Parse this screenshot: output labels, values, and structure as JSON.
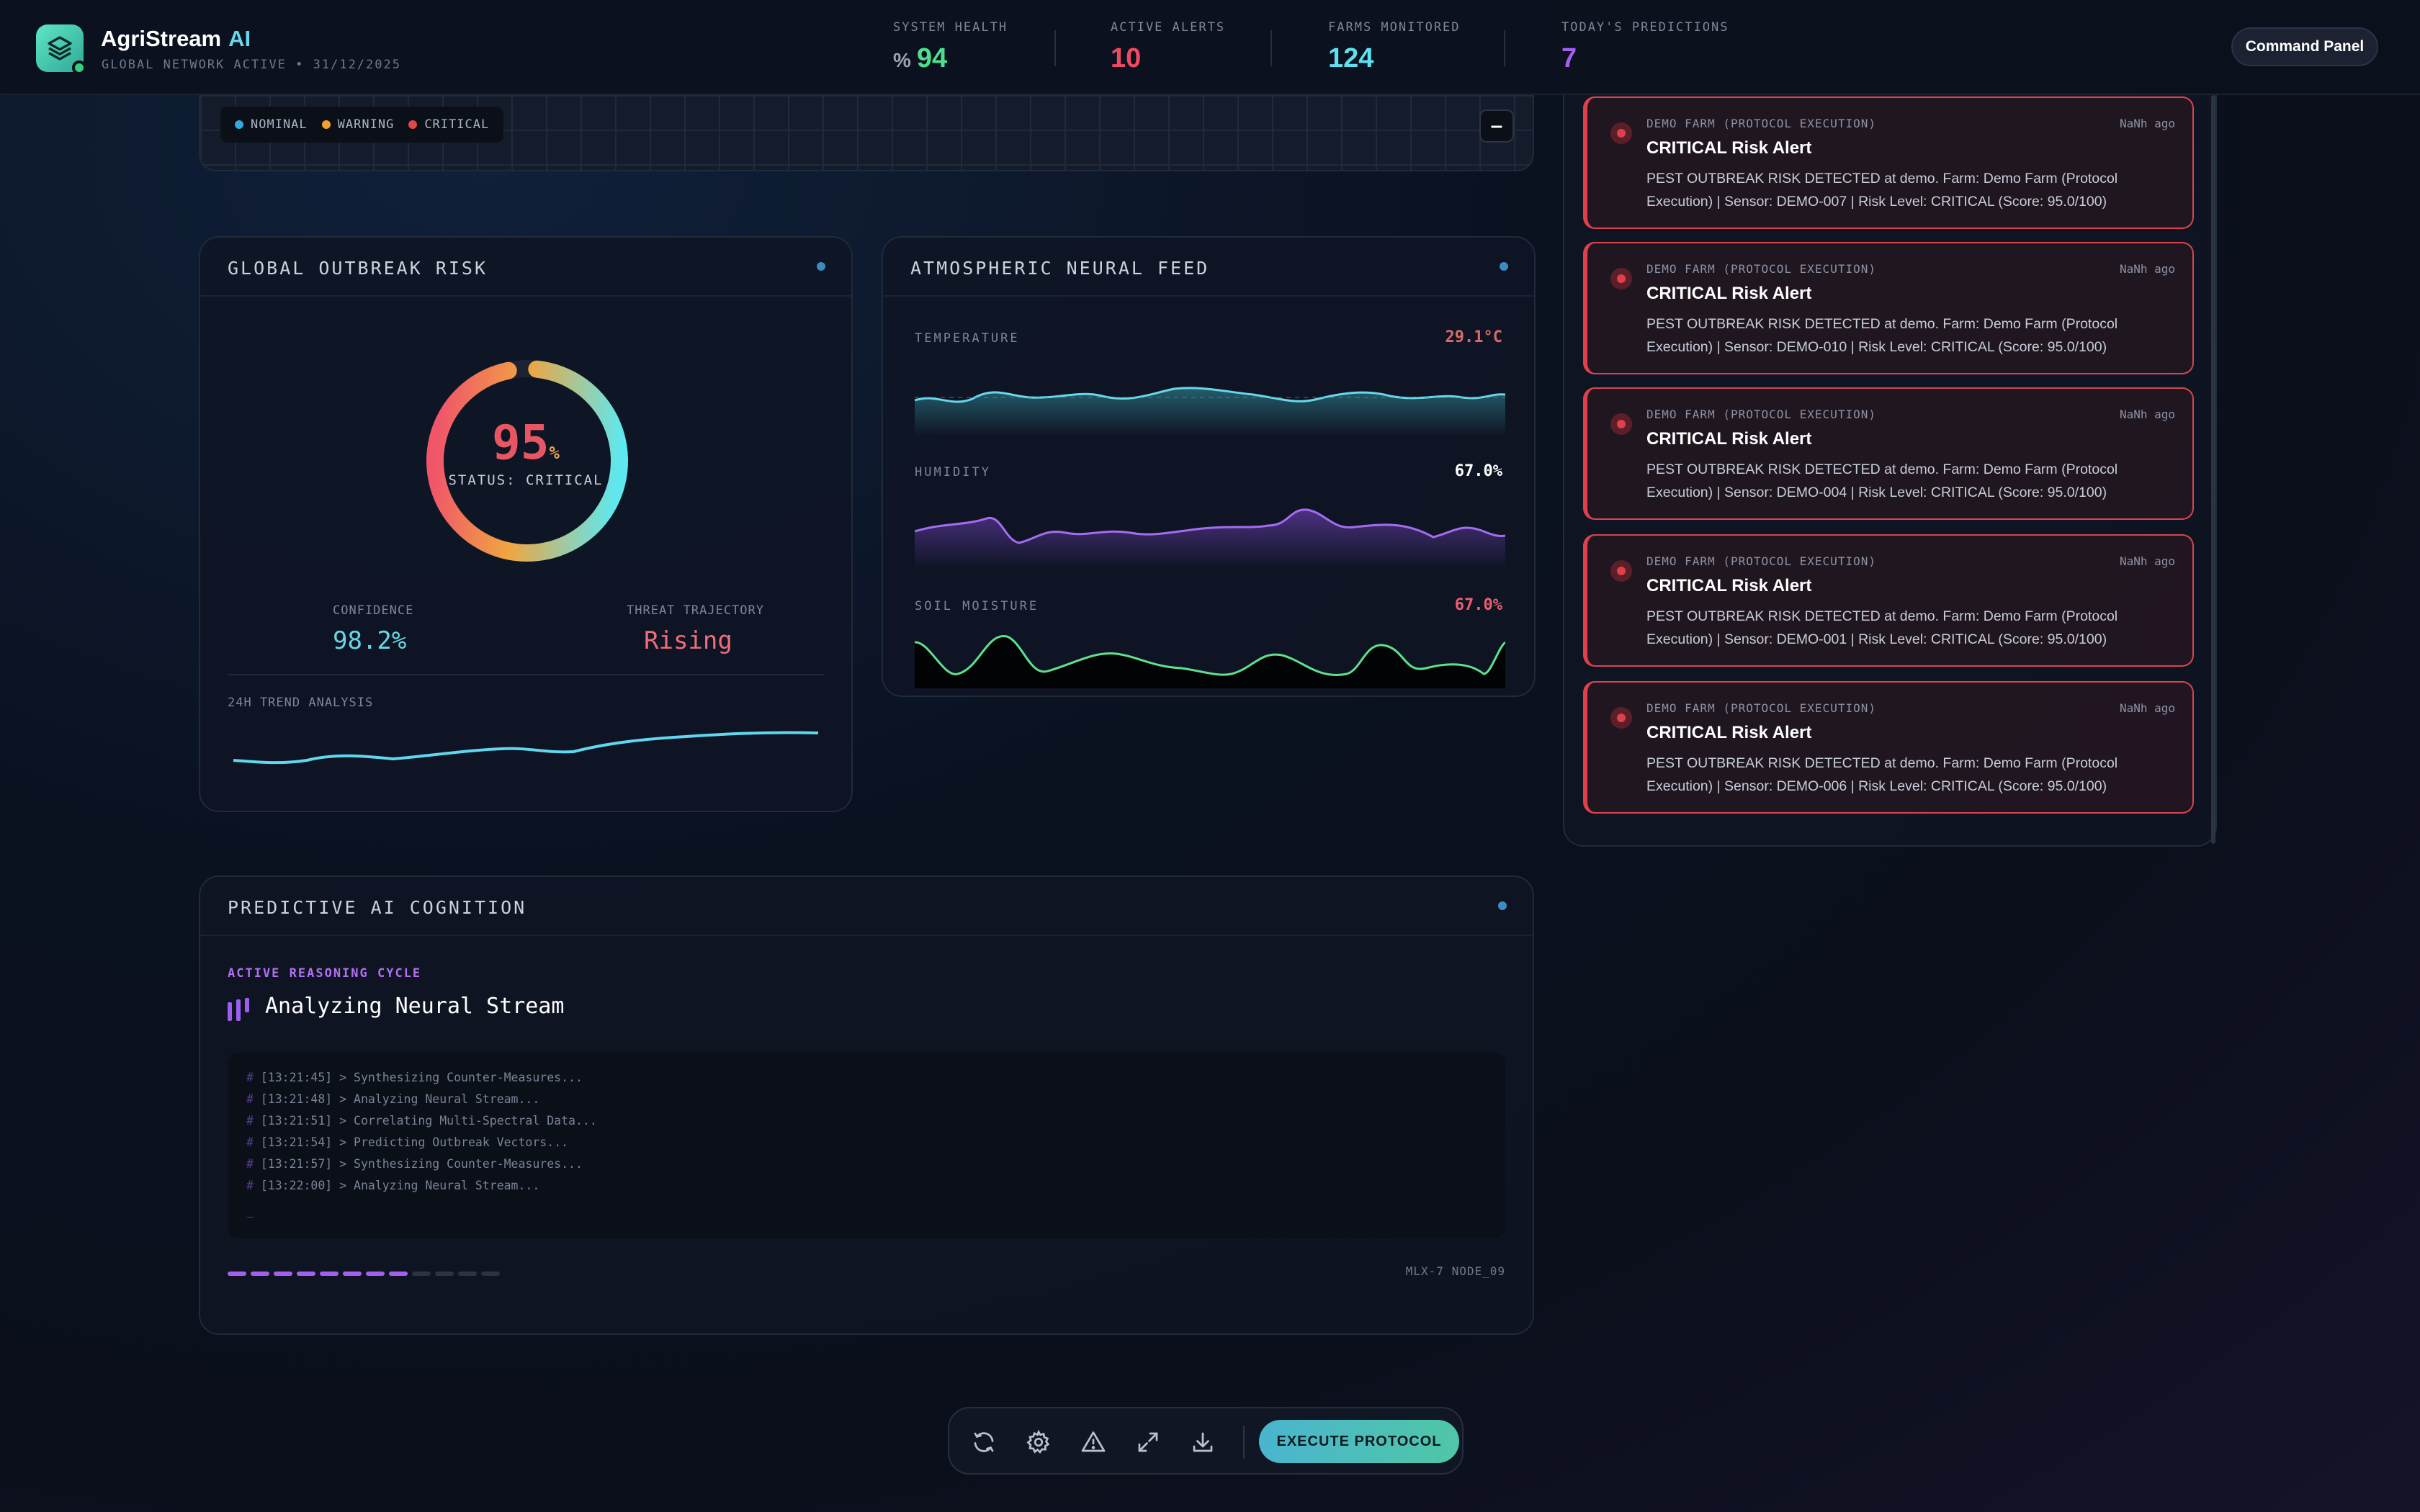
{
  "header": {
    "brand": "AgriStream",
    "brand_ai": "AI",
    "subtitle": "GLOBAL NETWORK ACTIVE • 31/12/2025",
    "stats": [
      {
        "label": "SYSTEM HEALTH",
        "prefix": "%",
        "value": "94",
        "color": "#4ee08c"
      },
      {
        "label": "ACTIVE ALERTS",
        "prefix": "",
        "value": "10",
        "color": "#ef4a63"
      },
      {
        "label": "FARMS MONITORED",
        "prefix": "",
        "value": "124",
        "color": "#5fe0ef"
      },
      {
        "label": "TODAY'S PREDICTIONS",
        "prefix": "",
        "value": "7",
        "color": "#a45ef0"
      }
    ],
    "command_panel": "Command Panel"
  },
  "map_strip": {
    "legend": [
      {
        "label": "NOMINAL",
        "color": "#34a8d8"
      },
      {
        "label": "WARNING",
        "color": "#f0a030"
      },
      {
        "label": "CRITICAL",
        "color": "#e04848"
      }
    ],
    "collapse_label": "–"
  },
  "risk": {
    "title": "GLOBAL OUTBREAK RISK",
    "gauge_value": "95",
    "gauge_unit": "%",
    "gauge_fraction": 0.95,
    "status": "STATUS: CRITICAL",
    "confidence_label": "CONFIDENCE",
    "confidence_value": "98.2%",
    "trajectory_label": "THREAT TRAJECTORY",
    "trajectory_value": "Rising",
    "trend_label": "24H TREND ANALYSIS"
  },
  "atmos": {
    "title": "ATMOSPHERIC NEURAL FEED",
    "feeds": [
      {
        "label": "TEMPERATURE",
        "value": "29.1°C",
        "color": "#d86a6a"
      },
      {
        "label": "HUMIDITY",
        "value": "67.0%",
        "color": "#ffffff"
      },
      {
        "label": "SOIL MOISTURE",
        "value": "67.0%",
        "color": "#ee5e6e"
      }
    ]
  },
  "alerts": [
    {
      "source": "DEMO FARM (PROTOCOL EXECUTION)",
      "ago": "NaNh ago",
      "title": "CRITICAL Risk Alert",
      "message": "PEST OUTBREAK RISK DETECTED at demo. Farm: Demo Farm (Protocol Execution) | Sensor: DEMO-007 | Risk Level: CRITICAL (Score: 95.0/100)"
    },
    {
      "source": "DEMO FARM (PROTOCOL EXECUTION)",
      "ago": "NaNh ago",
      "title": "CRITICAL Risk Alert",
      "message": "PEST OUTBREAK RISK DETECTED at demo. Farm: Demo Farm (Protocol Execution) | Sensor: DEMO-010 | Risk Level: CRITICAL (Score: 95.0/100)"
    },
    {
      "source": "DEMO FARM (PROTOCOL EXECUTION)",
      "ago": "NaNh ago",
      "title": "CRITICAL Risk Alert",
      "message": "PEST OUTBREAK RISK DETECTED at demo. Farm: Demo Farm (Protocol Execution) | Sensor: DEMO-004 | Risk Level: CRITICAL (Score: 95.0/100)"
    },
    {
      "source": "DEMO FARM (PROTOCOL EXECUTION)",
      "ago": "NaNh ago",
      "title": "CRITICAL Risk Alert",
      "message": "PEST OUTBREAK RISK DETECTED at demo. Farm: Demo Farm (Protocol Execution) | Sensor: DEMO-001 | Risk Level: CRITICAL (Score: 95.0/100)"
    },
    {
      "source": "DEMO FARM (PROTOCOL EXECUTION)",
      "ago": "NaNh ago",
      "title": "CRITICAL Risk Alert",
      "message": "PEST OUTBREAK RISK DETECTED at demo. Farm: Demo Farm (Protocol Execution) | Sensor: DEMO-006 | Risk Level: CRITICAL (Score: 95.0/100)"
    }
  ],
  "cognition": {
    "title": "PREDICTIVE AI COGNITION",
    "active_label": "ACTIVE REASONING CYCLE",
    "current_task": "Analyzing Neural Stream",
    "logs": [
      "[13:21:45] > Synthesizing Counter-Measures...",
      "[13:21:48] > Analyzing Neural Stream...",
      "[13:21:51] > Correlating Multi-Spectral Data...",
      "[13:21:54] > Predicting Outbreak Vectors...",
      "[13:21:57] > Synthesizing Counter-Measures...",
      "[13:22:00] > Analyzing Neural Stream..."
    ],
    "log_prefix": "#",
    "cursor": "_",
    "progress_filled": 8,
    "progress_total": 12,
    "node": "MLX-7 NODE_09"
  },
  "dock": {
    "icons": [
      "refresh-icon",
      "gear-icon",
      "warning-icon",
      "expand-icon",
      "download-icon"
    ],
    "execute_label": "EXECUTE PROTOCOL"
  }
}
